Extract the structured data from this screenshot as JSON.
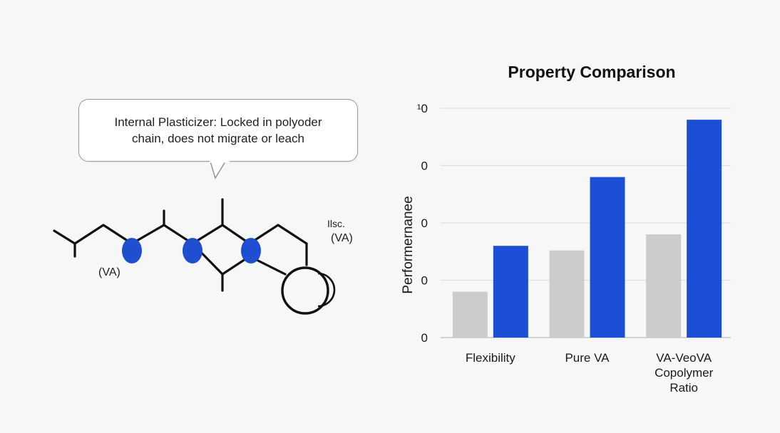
{
  "callout": {
    "text": "Internal Plasticizer: Locked in polyoder chain,  does not migrate or leach"
  },
  "molecule": {
    "label_left": "(VA)",
    "label_right_top": "Ilsc.",
    "label_right": "(VA)",
    "node_color": "#1f4fd1"
  },
  "chart_data": {
    "type": "bar",
    "title": "Property Comparison",
    "ylabel": "Performernanee",
    "ytick_labels": [
      "0",
      "0",
      "0",
      "0",
      "¹0"
    ],
    "ylim": [
      0,
      100
    ],
    "categories": [
      "Flexibility",
      "Pure VA",
      "VA-VeoVA Copolymer Ratio"
    ],
    "category_lines": [
      [
        "Flexibility"
      ],
      [
        "Pure VA"
      ],
      [
        "VA-VeoVA",
        "Copolymer",
        "Ratio"
      ]
    ],
    "series": [
      {
        "color": "#cccccc",
        "values": [
          20,
          38,
          45
        ]
      },
      {
        "color": "#1a4fd6",
        "values": [
          40,
          70,
          95
        ]
      }
    ],
    "grid": true
  }
}
